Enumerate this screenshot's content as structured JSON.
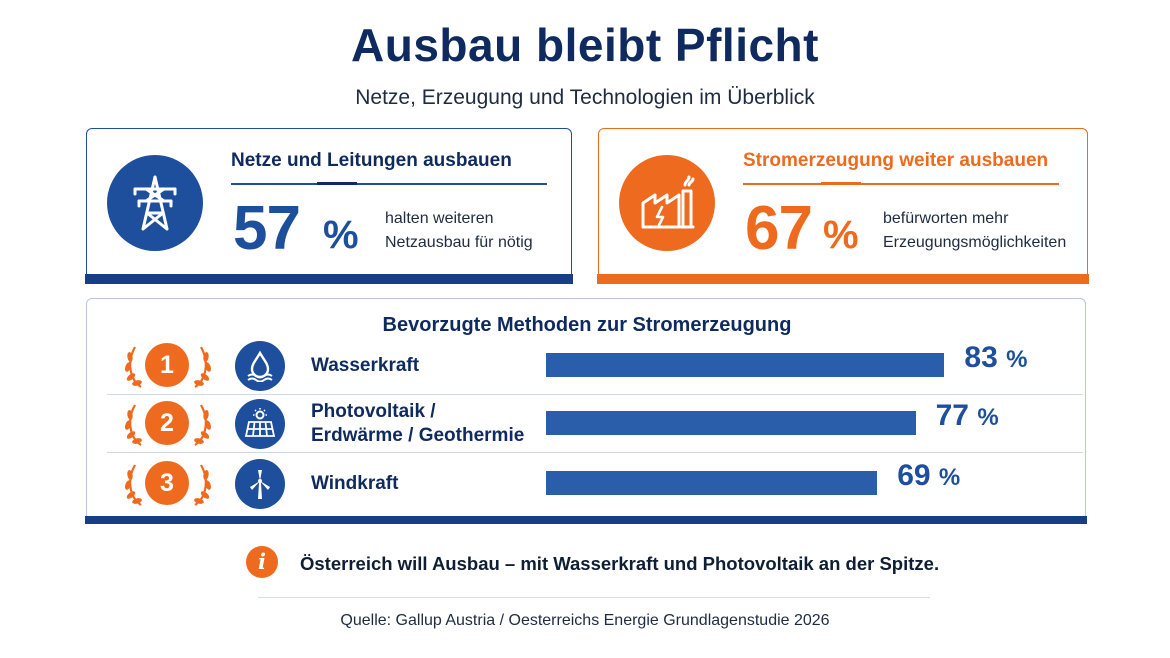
{
  "header": {
    "title": "Ausbau bleibt Pflicht",
    "subtitle": "Netze, Erzeugung und Technologien im Überblick"
  },
  "cards": [
    {
      "heading": "Netze und Leitungen ausbauen",
      "value": "57",
      "unit": "%",
      "desc_line1": "halten weiteren",
      "desc_line2": "Netzausbau für nötig",
      "icon": "power-pylon-icon",
      "color": "#1e4f9c"
    },
    {
      "heading": "Stromerzeugung weiter ausbauen",
      "value": "67",
      "unit": "%",
      "desc_line1": "befürworten mehr",
      "desc_line2": "Erzeugungsmöglichkeiten",
      "icon": "power-plant-icon",
      "color": "#ee6a1e"
    }
  ],
  "chart_data": {
    "type": "bar",
    "orientation": "horizontal",
    "title": "Bevorzugte Methoden zur Stromerzeugung",
    "unit": "%",
    "categories": [
      {
        "rank": "1",
        "label_line1": "Wasserkraft",
        "label_line2": "",
        "icon": "water-drop-icon"
      },
      {
        "rank": "2",
        "label_line1": "Photovoltaik /",
        "label_line2": "Erdwärme / Geothermie",
        "icon": "solar-panel-icon"
      },
      {
        "rank": "3",
        "label_line1": "Windkraft",
        "label_line2": "",
        "icon": "wind-turbine-icon"
      }
    ],
    "values": [
      83,
      77,
      69
    ],
    "value_labels": [
      "83",
      "77",
      "69"
    ],
    "bar_color": "#2a5daa",
    "grid": false
  },
  "footer": {
    "info_glyph": "i",
    "note": "Österreich will Ausbau – mit Wasserkraft und Photovoltaik an der Spitze.",
    "source": "Quelle: Gallup Austria / Oesterreichs Energie Grundlagenstudie 2026"
  }
}
